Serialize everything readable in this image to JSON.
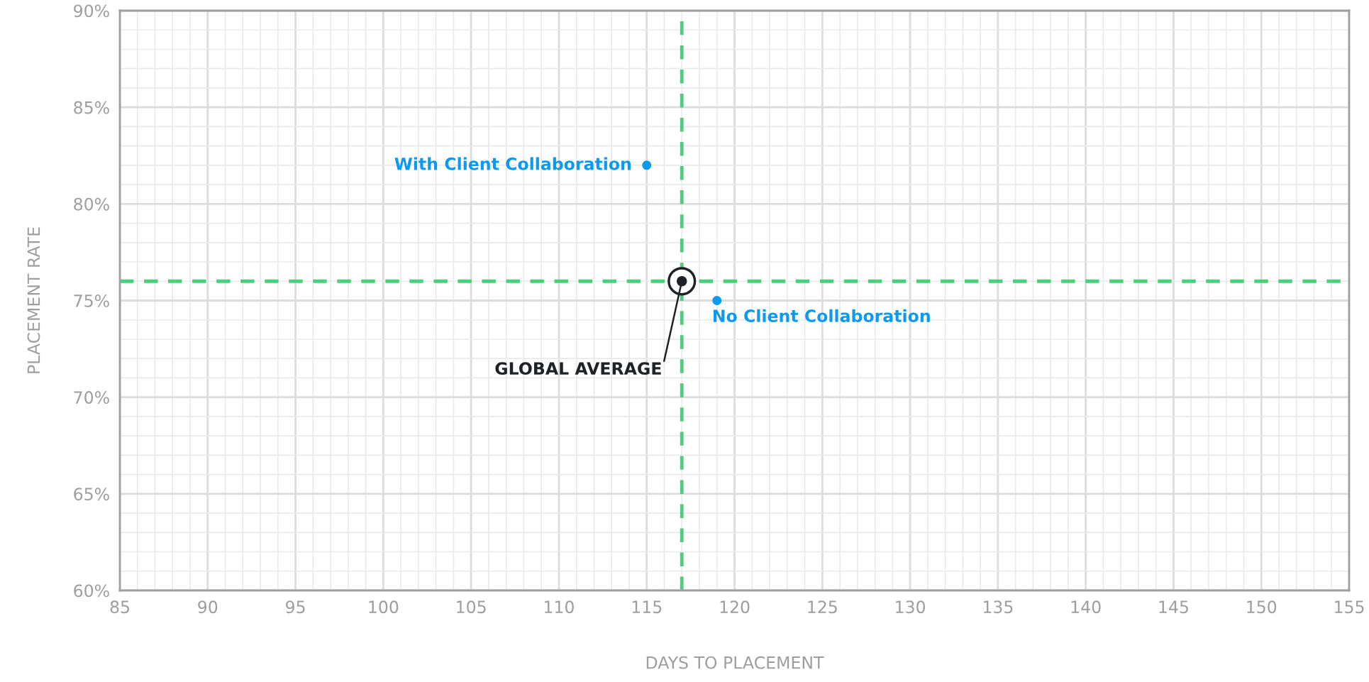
{
  "chart_data": {
    "type": "scatter",
    "xlabel": "DAYS TO PLACEMENT",
    "ylabel": "PLACEMENT RATE",
    "xlim": [
      85,
      155
    ],
    "xticks": [
      85,
      90,
      95,
      100,
      105,
      110,
      115,
      120,
      125,
      130,
      135,
      140,
      145,
      150,
      155
    ],
    "ylim": [
      60,
      90
    ],
    "yticks": [
      {
        "value": 60,
        "label": "60%"
      },
      {
        "value": 65,
        "label": "65%"
      },
      {
        "value": 70,
        "label": "70%"
      },
      {
        "value": 75,
        "label": "75%"
      },
      {
        "value": 80,
        "label": "80%"
      },
      {
        "value": 85,
        "label": "85%"
      },
      {
        "value": 90,
        "label": "90%"
      }
    ],
    "grid": true,
    "marker": "circle",
    "series": [
      {
        "name": "With Client Collaboration",
        "color": "#0a9bf0",
        "x": [
          115
        ],
        "values": [
          82
        ]
      },
      {
        "name": "No Client Collaboration",
        "color": "#0a9bf0",
        "x": [
          119
        ],
        "values": [
          75
        ]
      },
      {
        "name": "GLOBAL AVERAGE",
        "color": "#1e2227",
        "x": [
          117
        ],
        "values": [
          76
        ]
      }
    ],
    "ref_lines": [
      {
        "axis": "x",
        "value": 117,
        "label": null,
        "color": "#4ccf7c",
        "line_style": "dashed"
      },
      {
        "axis": "y",
        "value": 76,
        "label": null,
        "color": "#4ccf7c",
        "line_style": "dashed"
      }
    ]
  }
}
